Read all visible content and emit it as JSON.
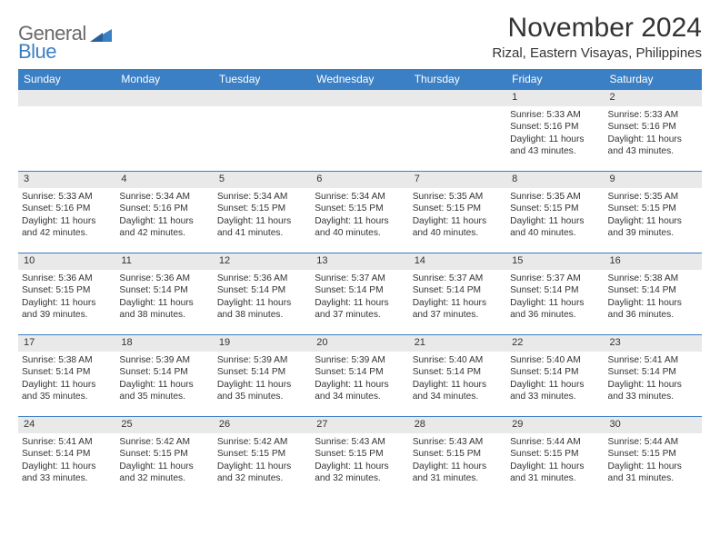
{
  "logo": {
    "line1": "General",
    "line2": "Blue",
    "accent_color": "#3b7fc4",
    "text_color": "#6a6a6a"
  },
  "title": "November 2024",
  "location": "Rizal, Eastern Visayas, Philippines",
  "colors": {
    "header_bg": "#3b7fc4",
    "header_fg": "#ffffff",
    "daynum_bg": "#e9e9e9",
    "border": "#3b7fc4",
    "text": "#333333",
    "background": "#ffffff"
  },
  "typography": {
    "title_fontsize": 30,
    "location_fontsize": 15,
    "header_fontsize": 12,
    "daynum_fontsize": 11,
    "body_fontsize": 10.2
  },
  "weekdays": [
    "Sunday",
    "Monday",
    "Tuesday",
    "Wednesday",
    "Thursday",
    "Friday",
    "Saturday"
  ],
  "weeks": [
    [
      {
        "n": "",
        "sunrise": "",
        "sunset": "",
        "daylight": ""
      },
      {
        "n": "",
        "sunrise": "",
        "sunset": "",
        "daylight": ""
      },
      {
        "n": "",
        "sunrise": "",
        "sunset": "",
        "daylight": ""
      },
      {
        "n": "",
        "sunrise": "",
        "sunset": "",
        "daylight": ""
      },
      {
        "n": "",
        "sunrise": "",
        "sunset": "",
        "daylight": ""
      },
      {
        "n": "1",
        "sunrise": "Sunrise: 5:33 AM",
        "sunset": "Sunset: 5:16 PM",
        "daylight": "Daylight: 11 hours and 43 minutes."
      },
      {
        "n": "2",
        "sunrise": "Sunrise: 5:33 AM",
        "sunset": "Sunset: 5:16 PM",
        "daylight": "Daylight: 11 hours and 43 minutes."
      }
    ],
    [
      {
        "n": "3",
        "sunrise": "Sunrise: 5:33 AM",
        "sunset": "Sunset: 5:16 PM",
        "daylight": "Daylight: 11 hours and 42 minutes."
      },
      {
        "n": "4",
        "sunrise": "Sunrise: 5:34 AM",
        "sunset": "Sunset: 5:16 PM",
        "daylight": "Daylight: 11 hours and 42 minutes."
      },
      {
        "n": "5",
        "sunrise": "Sunrise: 5:34 AM",
        "sunset": "Sunset: 5:15 PM",
        "daylight": "Daylight: 11 hours and 41 minutes."
      },
      {
        "n": "6",
        "sunrise": "Sunrise: 5:34 AM",
        "sunset": "Sunset: 5:15 PM",
        "daylight": "Daylight: 11 hours and 40 minutes."
      },
      {
        "n": "7",
        "sunrise": "Sunrise: 5:35 AM",
        "sunset": "Sunset: 5:15 PM",
        "daylight": "Daylight: 11 hours and 40 minutes."
      },
      {
        "n": "8",
        "sunrise": "Sunrise: 5:35 AM",
        "sunset": "Sunset: 5:15 PM",
        "daylight": "Daylight: 11 hours and 40 minutes."
      },
      {
        "n": "9",
        "sunrise": "Sunrise: 5:35 AM",
        "sunset": "Sunset: 5:15 PM",
        "daylight": "Daylight: 11 hours and 39 minutes."
      }
    ],
    [
      {
        "n": "10",
        "sunrise": "Sunrise: 5:36 AM",
        "sunset": "Sunset: 5:15 PM",
        "daylight": "Daylight: 11 hours and 39 minutes."
      },
      {
        "n": "11",
        "sunrise": "Sunrise: 5:36 AM",
        "sunset": "Sunset: 5:14 PM",
        "daylight": "Daylight: 11 hours and 38 minutes."
      },
      {
        "n": "12",
        "sunrise": "Sunrise: 5:36 AM",
        "sunset": "Sunset: 5:14 PM",
        "daylight": "Daylight: 11 hours and 38 minutes."
      },
      {
        "n": "13",
        "sunrise": "Sunrise: 5:37 AM",
        "sunset": "Sunset: 5:14 PM",
        "daylight": "Daylight: 11 hours and 37 minutes."
      },
      {
        "n": "14",
        "sunrise": "Sunrise: 5:37 AM",
        "sunset": "Sunset: 5:14 PM",
        "daylight": "Daylight: 11 hours and 37 minutes."
      },
      {
        "n": "15",
        "sunrise": "Sunrise: 5:37 AM",
        "sunset": "Sunset: 5:14 PM",
        "daylight": "Daylight: 11 hours and 36 minutes."
      },
      {
        "n": "16",
        "sunrise": "Sunrise: 5:38 AM",
        "sunset": "Sunset: 5:14 PM",
        "daylight": "Daylight: 11 hours and 36 minutes."
      }
    ],
    [
      {
        "n": "17",
        "sunrise": "Sunrise: 5:38 AM",
        "sunset": "Sunset: 5:14 PM",
        "daylight": "Daylight: 11 hours and 35 minutes."
      },
      {
        "n": "18",
        "sunrise": "Sunrise: 5:39 AM",
        "sunset": "Sunset: 5:14 PM",
        "daylight": "Daylight: 11 hours and 35 minutes."
      },
      {
        "n": "19",
        "sunrise": "Sunrise: 5:39 AM",
        "sunset": "Sunset: 5:14 PM",
        "daylight": "Daylight: 11 hours and 35 minutes."
      },
      {
        "n": "20",
        "sunrise": "Sunrise: 5:39 AM",
        "sunset": "Sunset: 5:14 PM",
        "daylight": "Daylight: 11 hours and 34 minutes."
      },
      {
        "n": "21",
        "sunrise": "Sunrise: 5:40 AM",
        "sunset": "Sunset: 5:14 PM",
        "daylight": "Daylight: 11 hours and 34 minutes."
      },
      {
        "n": "22",
        "sunrise": "Sunrise: 5:40 AM",
        "sunset": "Sunset: 5:14 PM",
        "daylight": "Daylight: 11 hours and 33 minutes."
      },
      {
        "n": "23",
        "sunrise": "Sunrise: 5:41 AM",
        "sunset": "Sunset: 5:14 PM",
        "daylight": "Daylight: 11 hours and 33 minutes."
      }
    ],
    [
      {
        "n": "24",
        "sunrise": "Sunrise: 5:41 AM",
        "sunset": "Sunset: 5:14 PM",
        "daylight": "Daylight: 11 hours and 33 minutes."
      },
      {
        "n": "25",
        "sunrise": "Sunrise: 5:42 AM",
        "sunset": "Sunset: 5:15 PM",
        "daylight": "Daylight: 11 hours and 32 minutes."
      },
      {
        "n": "26",
        "sunrise": "Sunrise: 5:42 AM",
        "sunset": "Sunset: 5:15 PM",
        "daylight": "Daylight: 11 hours and 32 minutes."
      },
      {
        "n": "27",
        "sunrise": "Sunrise: 5:43 AM",
        "sunset": "Sunset: 5:15 PM",
        "daylight": "Daylight: 11 hours and 32 minutes."
      },
      {
        "n": "28",
        "sunrise": "Sunrise: 5:43 AM",
        "sunset": "Sunset: 5:15 PM",
        "daylight": "Daylight: 11 hours and 31 minutes."
      },
      {
        "n": "29",
        "sunrise": "Sunrise: 5:44 AM",
        "sunset": "Sunset: 5:15 PM",
        "daylight": "Daylight: 11 hours and 31 minutes."
      },
      {
        "n": "30",
        "sunrise": "Sunrise: 5:44 AM",
        "sunset": "Sunset: 5:15 PM",
        "daylight": "Daylight: 11 hours and 31 minutes."
      }
    ]
  ]
}
